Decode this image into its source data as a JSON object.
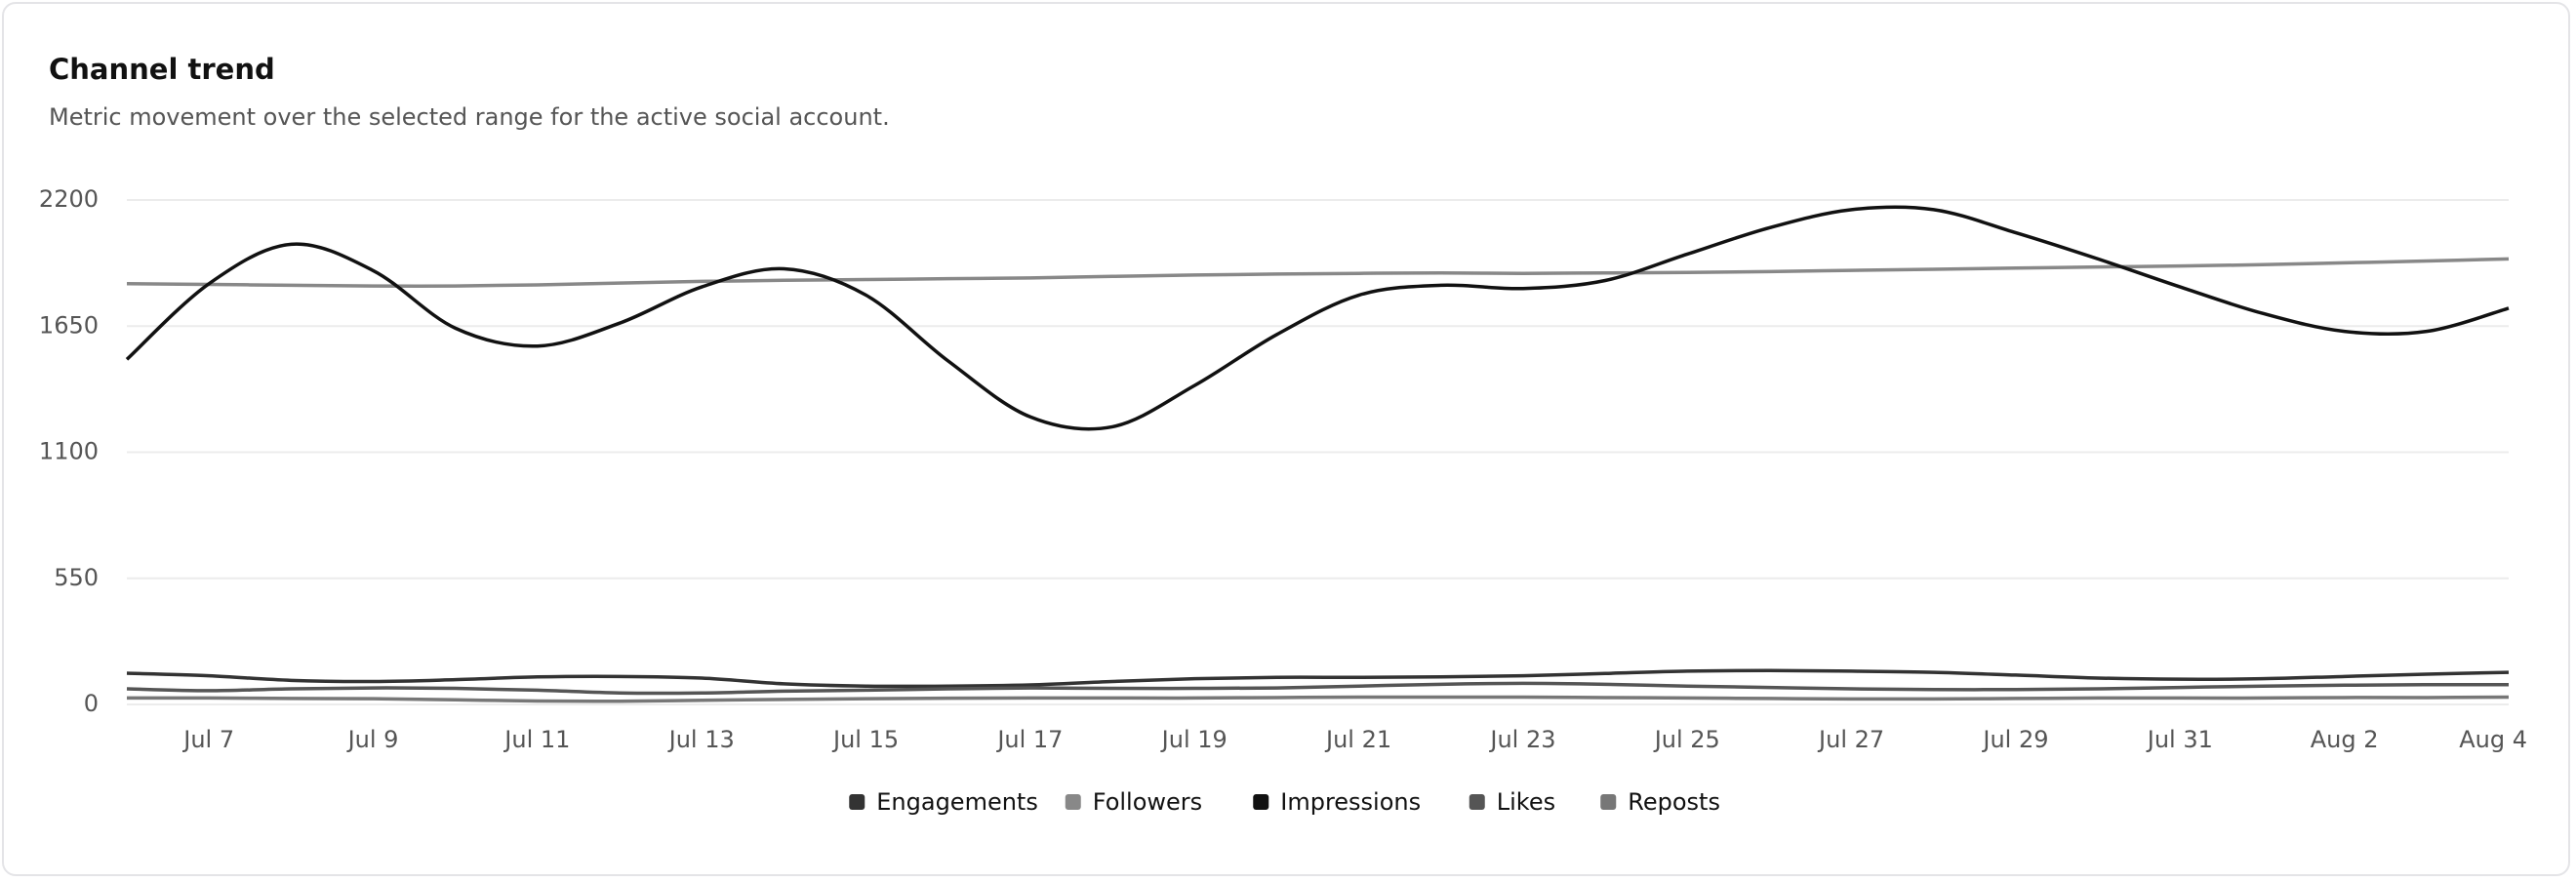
{
  "chart_data": {
    "type": "line",
    "title": "Channel trend",
    "subtitle": "Metric movement over the selected range for the active social account.",
    "categories": [
      null,
      "Jul 7",
      null,
      "Jul 9",
      null,
      "Jul 11",
      null,
      "Jul 13",
      null,
      "Jul 15",
      null,
      "Jul 17",
      null,
      "Jul 19",
      null,
      "Jul 21",
      null,
      "Jul 23",
      null,
      "Jul 25",
      null,
      "Jul 27",
      null,
      "Jul 29",
      null,
      "Jul 31",
      null,
      "Aug 2",
      null,
      "Aug 4"
    ],
    "ylim": [
      0,
      2200
    ],
    "yticks": [
      0,
      550,
      1100,
      1650,
      2200
    ],
    "grid": true,
    "series": [
      {
        "name": "Engagements",
        "color": "#333333",
        "values": [
          136,
          125,
          105,
          100,
          108,
          120,
          122,
          115,
          90,
          80,
          80,
          85,
          100,
          112,
          118,
          118,
          120,
          125,
          135,
          145,
          148,
          145,
          140,
          128,
          115,
          110,
          112,
          122,
          132,
          140
        ]
      },
      {
        "name": "Followers",
        "color": "#888888",
        "values": [
          1835,
          1832,
          1828,
          1825,
          1825,
          1830,
          1838,
          1845,
          1850,
          1853,
          1857,
          1860,
          1867,
          1873,
          1877,
          1880,
          1882,
          1880,
          1882,
          1884,
          1888,
          1893,
          1898,
          1903,
          1908,
          1912,
          1918,
          1926,
          1934,
          1943
        ]
      },
      {
        "name": "Impressions",
        "color": "#111111",
        "values": [
          1505,
          1835,
          2007,
          1892,
          1641,
          1563,
          1663,
          1821,
          1900,
          1785,
          1498,
          1254,
          1211,
          1391,
          1613,
          1785,
          1828,
          1814,
          1849,
          1964,
          2079,
          2158,
          2158,
          2057,
          1943,
          1821,
          1706,
          1627,
          1627,
          1728
        ]
      },
      {
        "name": "Likes",
        "color": "#555555",
        "values": [
          68,
          60,
          68,
          72,
          70,
          62,
          50,
          50,
          58,
          62,
          68,
          72,
          70,
          70,
          72,
          80,
          88,
          92,
          88,
          80,
          74,
          68,
          65,
          65,
          68,
          74,
          80,
          84,
          86,
          86
        ]
      },
      {
        "name": "Reposts",
        "color": "#777777",
        "values": [
          28,
          28,
          26,
          25,
          20,
          15,
          14,
          18,
          22,
          25,
          27,
          28,
          28,
          28,
          30,
          32,
          32,
          32,
          30,
          28,
          26,
          24,
          24,
          26,
          28,
          28,
          28,
          30,
          30,
          32
        ]
      }
    ]
  }
}
